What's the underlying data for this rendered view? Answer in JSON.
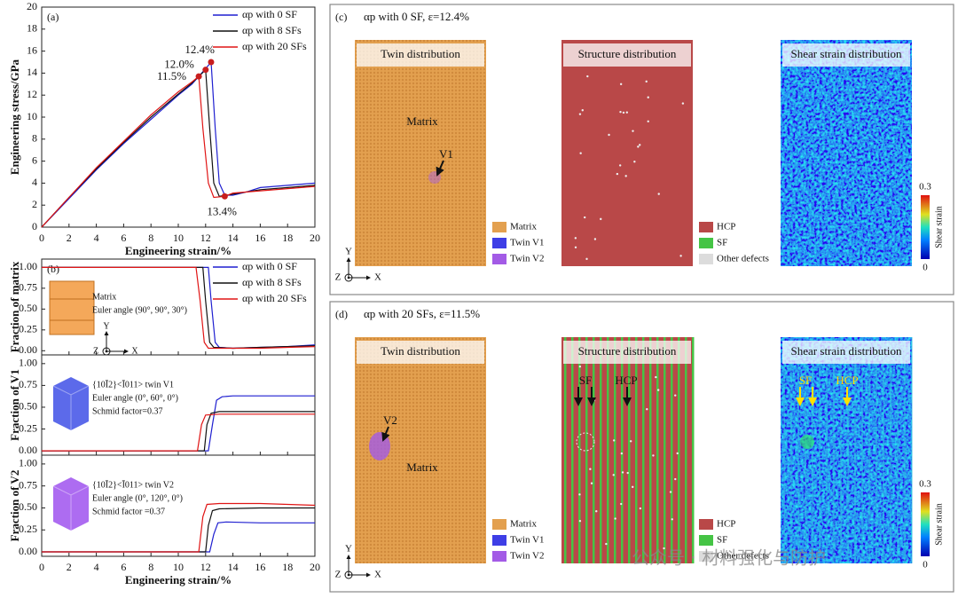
{
  "chart_data": [
    {
      "type": "line",
      "label": "(a)",
      "xlabel": "Engineering strain/%",
      "ylabel": "Engineering stress/GPa",
      "xlim": [
        0,
        20
      ],
      "ylim": [
        0,
        20
      ],
      "xticks": [
        0,
        2,
        4,
        6,
        8,
        10,
        12,
        14,
        16,
        18,
        20
      ],
      "yticks": [
        0,
        2,
        4,
        6,
        8,
        10,
        12,
        14,
        16,
        18,
        20
      ],
      "legend": "upper right",
      "series": [
        {
          "name": "αp with 0 SF",
          "color": "#1f1fd0",
          "x": [
            0,
            2,
            4,
            6,
            8,
            10,
            11,
            12,
            12.4,
            12.7,
            13,
            13.4,
            14,
            15,
            16,
            18,
            20
          ],
          "values": [
            0,
            2.6,
            5.2,
            7.6,
            9.8,
            12.0,
            13.0,
            14.4,
            15.0,
            9,
            4,
            2.9,
            2.9,
            3.2,
            3.6,
            3.8,
            4.0
          ]
        },
        {
          "name": "αp with 8 SFs",
          "color": "#111111",
          "x": [
            0,
            2,
            4,
            6,
            8,
            10,
            11,
            11.5,
            12.0,
            12.3,
            12.6,
            13,
            14,
            16,
            18,
            20
          ],
          "values": [
            0,
            2.7,
            5.3,
            7.7,
            10.0,
            12.1,
            13.1,
            13.7,
            14.3,
            9,
            4,
            2.8,
            3.0,
            3.4,
            3.6,
            3.8
          ]
        },
        {
          "name": "αp with 20 SFs",
          "color": "#e01515",
          "x": [
            0,
            2,
            4,
            6,
            8,
            10,
            11,
            11.5,
            11.8,
            12.2,
            12.6,
            13.4,
            14,
            16,
            18,
            20
          ],
          "values": [
            0,
            2.7,
            5.4,
            7.8,
            10.2,
            12.3,
            13.2,
            13.7,
            9,
            4,
            2.7,
            2.8,
            3.1,
            3.3,
            3.5,
            3.7
          ]
        }
      ],
      "annotations": [
        {
          "x": 12.4,
          "y": 15.0,
          "text": "12.4%"
        },
        {
          "x": 12.0,
          "y": 14.3,
          "text": "12.0%"
        },
        {
          "x": 11.5,
          "y": 13.7,
          "text": "11.5%"
        },
        {
          "x": 13.4,
          "y": 2.8,
          "text": "13.4%"
        }
      ],
      "annotation_color": "#c81e1e"
    },
    {
      "type": "line",
      "label": "(b)",
      "ylabel": "Fraction of matrix",
      "xlim": [
        0,
        20
      ],
      "ylim": [
        -0.05,
        1.1
      ],
      "xticks": [
        0,
        2,
        4,
        6,
        8,
        10,
        12,
        14,
        16,
        18,
        20
      ],
      "yticks": [
        {
          "value": 0,
          "label": "0.00"
        },
        {
          "value": 0.25,
          "label": "0.25"
        },
        {
          "value": 0.5,
          "label": "0.50"
        },
        {
          "value": 0.75,
          "label": "0.75"
        },
        {
          "value": 1,
          "label": "1.00"
        }
      ],
      "legend": "upper right",
      "series": [
        {
          "name": "αp with 0 SF",
          "color": "#1f1fd0",
          "x": [
            0,
            11,
            12.2,
            12.4,
            12.7,
            13,
            14,
            16,
            18,
            20
          ],
          "values": [
            1,
            1,
            1,
            0.6,
            0.1,
            0.04,
            0.03,
            0.04,
            0.05,
            0.07
          ]
        },
        {
          "name": "αp with 8 SFs",
          "color": "#111111",
          "x": [
            0,
            11,
            11.8,
            12.0,
            12.3,
            12.6,
            14,
            16,
            18,
            20
          ],
          "values": [
            1,
            1,
            1,
            0.6,
            0.1,
            0.04,
            0.03,
            0.04,
            0.05,
            0.06
          ]
        },
        {
          "name": "αp with 20 SFs",
          "color": "#e01515",
          "x": [
            0,
            10,
            11.3,
            11.6,
            11.9,
            12.2,
            14,
            16,
            18,
            20
          ],
          "values": [
            1,
            1,
            1,
            0.6,
            0.1,
            0.03,
            0.03,
            0.03,
            0.04,
            0.05
          ]
        }
      ],
      "notes": [
        "Matrix",
        "Euler angle (90°, 90°, 30°)"
      ],
      "axes_labels": [
        "Y",
        "Z",
        "X"
      ],
      "inset_color": "#f4a85a"
    },
    {
      "type": "line",
      "ylabel": "Fraction of V1",
      "xlim": [
        0,
        20
      ],
      "ylim": [
        -0.05,
        1.1
      ],
      "xticks": [
        0,
        2,
        4,
        6,
        8,
        10,
        12,
        14,
        16,
        18,
        20
      ],
      "yticks": [
        {
          "value": 0,
          "label": "0.00"
        },
        {
          "value": 0.25,
          "label": "0.25"
        },
        {
          "value": 0.5,
          "label": "0.50"
        },
        {
          "value": 0.75,
          "label": "0.75"
        },
        {
          "value": 1,
          "label": "1.00"
        }
      ],
      "series": [
        {
          "color": "#1f1fd0",
          "x": [
            0,
            11,
            12.2,
            12.5,
            12.8,
            13.2,
            14,
            16,
            18,
            20
          ],
          "values": [
            0,
            0,
            0,
            0.3,
            0.58,
            0.62,
            0.63,
            0.63,
            0.63,
            0.63
          ]
        },
        {
          "color": "#111111",
          "x": [
            0,
            11,
            11.9,
            12.1,
            12.4,
            13,
            16,
            20
          ],
          "values": [
            0,
            0,
            0,
            0.3,
            0.43,
            0.45,
            0.45,
            0.45
          ]
        },
        {
          "color": "#e01515",
          "x": [
            0,
            11,
            11.4,
            11.7,
            12.0,
            13,
            16,
            20
          ],
          "values": [
            0,
            0,
            0,
            0.3,
            0.41,
            0.42,
            0.42,
            0.42
          ]
        }
      ],
      "notes": [
        "{10Ī2}<Ī011> twin V1",
        "Euler angle (0°, 60°, 0°)",
        "Schmid factor=0.37"
      ],
      "inset_color": "#4a5ae8"
    },
    {
      "type": "line",
      "ylabel": "Fraction of V2",
      "xlabel": "Engineering strain/%",
      "xlim": [
        0,
        20
      ],
      "ylim": [
        -0.05,
        1.1
      ],
      "xticks": [
        0,
        2,
        4,
        6,
        8,
        10,
        12,
        14,
        16,
        18,
        20
      ],
      "yticks": [
        {
          "value": 0,
          "label": "0.00"
        },
        {
          "value": 0.25,
          "label": "0.25"
        },
        {
          "value": 0.5,
          "label": "0.50"
        },
        {
          "value": 0.75,
          "label": "0.75"
        },
        {
          "value": 1,
          "label": "1.00"
        }
      ],
      "series": [
        {
          "color": "#1f1fd0",
          "x": [
            0,
            11,
            12.3,
            12.6,
            12.9,
            13.5,
            16,
            20
          ],
          "values": [
            0,
            0,
            0,
            0.2,
            0.33,
            0.34,
            0.33,
            0.33
          ]
        },
        {
          "color": "#111111",
          "x": [
            0,
            11,
            12.0,
            12.2,
            12.5,
            13,
            16,
            20
          ],
          "values": [
            0,
            0,
            0,
            0.3,
            0.47,
            0.49,
            0.5,
            0.5
          ]
        },
        {
          "color": "#e01515",
          "x": [
            0,
            11,
            11.5,
            11.8,
            12.1,
            13,
            16,
            20
          ],
          "values": [
            0,
            0,
            0,
            0.4,
            0.54,
            0.55,
            0.55,
            0.53
          ]
        }
      ],
      "notes": [
        "{10Ī2}<Ī011> twin V2",
        "Euler angle (0°, 120°, 0°)",
        "Schmid factor =0.37"
      ],
      "inset_color": "#a45cf0"
    }
  ],
  "panels": [
    {
      "label": "(c)",
      "title": "αp with 0 SF, ε=12.4%",
      "stacking_faults": false,
      "maps": [
        {
          "title": "Twin distribution",
          "labels": [
            "Matrix",
            "V1"
          ]
        },
        {
          "title": "Structure distribution",
          "labels": []
        },
        {
          "title": "Shear strain distribution",
          "labels": []
        }
      ],
      "twin_legend": [
        {
          "name": "Matrix",
          "color": "#e3a04f"
        },
        {
          "name": "Twin V1",
          "color": "#3e3ee6"
        },
        {
          "name": "Twin V2",
          "color": "#a35be6"
        }
      ],
      "structure_legend": [
        {
          "name": "HCP",
          "color": "#b94848"
        },
        {
          "name": "SF",
          "color": "#45c445"
        },
        {
          "name": "Other defects",
          "color": "#dcdcdc"
        }
      ],
      "colorbar": {
        "label": "Shear strain",
        "ticks": [
          0,
          0.3
        ]
      },
      "axes_labels": [
        "Y",
        "Z",
        "X"
      ]
    },
    {
      "label": "(d)",
      "title": "αp with 20 SFs, ε=11.5%",
      "stacking_faults": true,
      "maps": [
        {
          "title": "Twin distribution",
          "labels": [
            "V2",
            "Matrix"
          ]
        },
        {
          "title": "Structure distribution",
          "labels": [
            "SF",
            "HCP"
          ]
        },
        {
          "title": "Shear strain distribution",
          "labels": [
            "SF",
            "HCP"
          ]
        }
      ],
      "twin_legend": [
        {
          "name": "Matrix",
          "color": "#e3a04f"
        },
        {
          "name": "Twin V1",
          "color": "#3e3ee6"
        },
        {
          "name": "Twin V2",
          "color": "#a35be6"
        }
      ],
      "structure_legend": [
        {
          "name": "HCP",
          "color": "#b94848"
        },
        {
          "name": "SF",
          "color": "#45c445"
        },
        {
          "name": "Other defects",
          "color": "#dcdcdc"
        }
      ],
      "colorbar": {
        "label": "Shear strain",
        "ticks": [
          0,
          0.3
        ]
      },
      "axes_labels": [
        "Y",
        "Z",
        "X"
      ]
    }
  ],
  "watermark": "公众号 · 材料强化与防护"
}
